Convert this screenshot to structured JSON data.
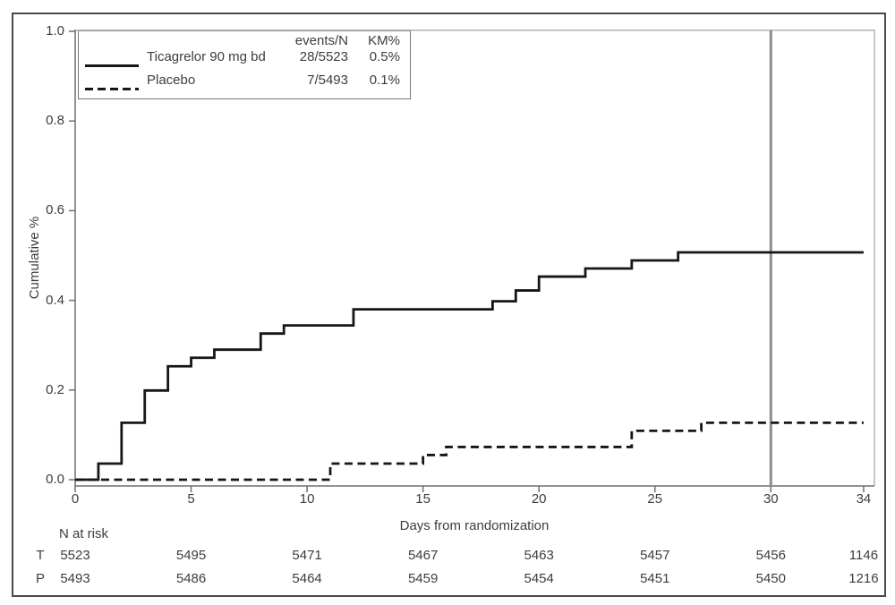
{
  "figure": {
    "y_axis_label": "Cumulative %",
    "x_axis_label": "Days from randomization"
  },
  "legend": {
    "header": {
      "events": "events/N",
      "km": "KM%"
    },
    "rows": [
      {
        "label": "Ticagrelor 90 mg bd",
        "events_n": "28/5523",
        "km": "0.5%",
        "line_style": "solid"
      },
      {
        "label": "Placebo",
        "events_n": "7/5493",
        "km": "0.1%",
        "line_style": "dashed"
      }
    ]
  },
  "chart_data": {
    "type": "line",
    "subtype": "kaplan-meier-step",
    "title": "",
    "xlabel": "Days from randomization",
    "ylabel": "Cumulative %",
    "xlim": [
      0,
      34.5
    ],
    "ylim": [
      0,
      1.0
    ],
    "x_ticks": [
      0,
      5,
      10,
      15,
      20,
      25,
      30,
      34
    ],
    "y_ticks": [
      0.0,
      0.2,
      0.4,
      0.6,
      0.8,
      1.0
    ],
    "grid": false,
    "legend_position": "top-left",
    "reference_line_x": 30,
    "series": [
      {
        "name": "Ticagrelor 90 mg bd",
        "style": "solid",
        "color": "#161616",
        "events_n": "28/5523",
        "km_pct": "0.5%",
        "x": [
          0,
          1,
          2,
          3,
          4,
          5,
          6,
          8,
          9,
          12,
          18,
          19,
          20,
          22,
          24,
          26,
          34
        ],
        "y": [
          0,
          0.036,
          0.127,
          0.199,
          0.253,
          0.272,
          0.29,
          0.326,
          0.344,
          0.38,
          0.398,
          0.422,
          0.453,
          0.471,
          0.489,
          0.507,
          0.507
        ]
      },
      {
        "name": "Placebo",
        "style": "dashed",
        "color": "#161616",
        "events_n": "7/5493",
        "km_pct": "0.1%",
        "x": [
          0,
          11,
          15,
          16,
          24,
          27,
          34
        ],
        "y": [
          0,
          0.036,
          0.055,
          0.073,
          0.109,
          0.127,
          0.127
        ]
      }
    ],
    "risk_table": {
      "label": "N at risk",
      "days": [
        0,
        5,
        10,
        15,
        20,
        25,
        30,
        34
      ],
      "rows": [
        {
          "label": "T",
          "values": [
            "5523",
            "5495",
            "5471",
            "5467",
            "5463",
            "5457",
            "5456",
            "1146"
          ]
        },
        {
          "label": "P",
          "values": [
            "5493",
            "5486",
            "5464",
            "5459",
            "5454",
            "5451",
            "5450",
            "1216"
          ]
        }
      ]
    }
  },
  "colors": {
    "curve": "#161616",
    "reference_line": "#8c8c8c",
    "axis": "#6e6e6e",
    "frame_light": "#b3b3b3",
    "text": "#3d3d3d",
    "border": "#4a4a4a"
  }
}
